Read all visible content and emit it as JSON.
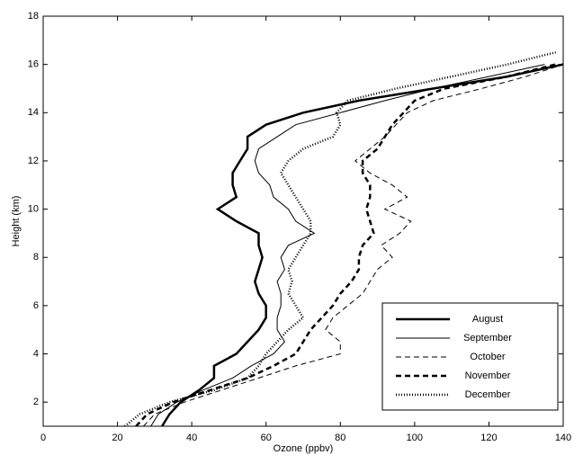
{
  "chart_data": {
    "type": "line",
    "x_label": "Ozone (ppbv)",
    "y_label": "Height (km)",
    "y": [
      1,
      1.5,
      2,
      2.5,
      3,
      3.5,
      4,
      4.5,
      5,
      5.5,
      6,
      6.5,
      7,
      7.5,
      8,
      8.5,
      9,
      9.5,
      10,
      10.5,
      11,
      11.5,
      12,
      12.5,
      13,
      13.5,
      14,
      14.5,
      15,
      15.5,
      16,
      16.5
    ],
    "series": [
      {
        "name": "August",
        "color": "#000000",
        "style": "solid",
        "linewidth": 2.5,
        "values": [
          32,
          34,
          37,
          42,
          46,
          46,
          52,
          55,
          58,
          60,
          60,
          58,
          57,
          58,
          59,
          58,
          58,
          52,
          47,
          52,
          51,
          51,
          53,
          55,
          55,
          60,
          70,
          85,
          105,
          125,
          140,
          null
        ]
      },
      {
        "name": "September",
        "color": "#000000",
        "style": "solid",
        "linewidth": 1,
        "values": [
          29,
          31,
          36,
          43,
          51,
          56,
          62,
          65,
          63,
          63,
          64,
          64,
          63,
          65,
          64,
          66,
          73,
          68,
          66,
          62,
          61,
          58,
          57,
          58,
          63,
          68,
          80,
          92,
          105,
          120,
          135,
          null
        ]
      },
      {
        "name": "October",
        "color": "#000000",
        "style": "dashed",
        "linewidth": 1,
        "values": [
          27,
          30,
          38,
          48,
          58,
          68,
          80,
          80,
          76,
          78,
          82,
          86,
          88,
          90,
          94,
          91,
          96,
          99,
          92,
          98,
          94,
          88,
          84,
          88,
          92,
          95,
          98,
          105,
          118,
          130,
          140,
          null
        ]
      },
      {
        "name": "November",
        "color": "#000000",
        "style": "dashed",
        "linewidth": 2.5,
        "values": [
          25,
          28,
          35,
          45,
          55,
          62,
          68,
          70,
          72,
          75,
          78,
          80,
          83,
          85,
          85,
          86,
          89,
          88,
          87,
          88,
          88,
          86,
          86,
          90,
          92,
          94,
          97,
          100,
          108,
          125,
          138,
          null
        ]
      },
      {
        "name": "December",
        "color": "#000000",
        "style": "dotted",
        "linewidth": 2.5,
        "values": [
          22,
          26,
          34,
          46,
          55,
          58,
          60,
          63,
          66,
          70,
          68,
          66,
          67,
          66,
          68,
          70,
          72,
          72,
          70,
          68,
          66,
          64,
          66,
          70,
          78,
          80,
          79,
          82,
          95,
          110,
          125,
          138
        ]
      }
    ],
    "xlim": [
      0,
      140
    ],
    "xticks": [
      0,
      20,
      40,
      60,
      80,
      100,
      120,
      140
    ],
    "ylim": [
      1,
      18
    ],
    "yticks": [
      2,
      4,
      6,
      8,
      10,
      12,
      14,
      16,
      18
    ],
    "grid": false,
    "legend": "lower right"
  }
}
